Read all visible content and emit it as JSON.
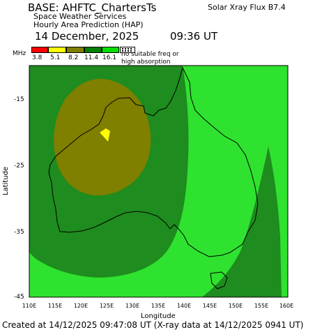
{
  "header": {
    "title": "BASE: AHFTC_ChartersTs",
    "solar_flux": "Solar Xray Flux B7.4",
    "subtitle_1": "Space Weather Services",
    "subtitle_2": "Hourly Area Prediction (HAP)",
    "date": "14 December, 2025",
    "time": "09:36 UT"
  },
  "legend": {
    "unit": "MHz",
    "bins": [
      {
        "label": "3.8",
        "color": "#ff0000"
      },
      {
        "label": "5.1",
        "color": "#ffff00"
      },
      {
        "label": "8.2",
        "color": "#7f7f00"
      },
      {
        "label": "11.4",
        "color": "#008000"
      },
      {
        "label": "16.1",
        "color": "#00e000"
      }
    ],
    "no_freq_line_1": "no suitable freq or",
    "no_freq_line_2": "high absorption"
  },
  "axes": {
    "xlabel": "Longitude",
    "ylabel": "Latitude",
    "xticks": [
      "110E",
      "115E",
      "120E",
      "125E",
      "130E",
      "135E",
      "140E",
      "145E",
      "150E",
      "155E",
      "160E"
    ],
    "yticks": [
      "-15",
      "-25",
      "-35",
      "-45"
    ]
  },
  "map_colors": {
    "outer": "#2fe22f",
    "dark_green": "#1e8c1e",
    "olive": "#7f7f00",
    "yellow": "#ffff00",
    "coast": "#000000"
  },
  "footer": "Created at 14/12/2025 09:47:08 UT (X-ray data at 14/12/2025 0941 UT)"
}
